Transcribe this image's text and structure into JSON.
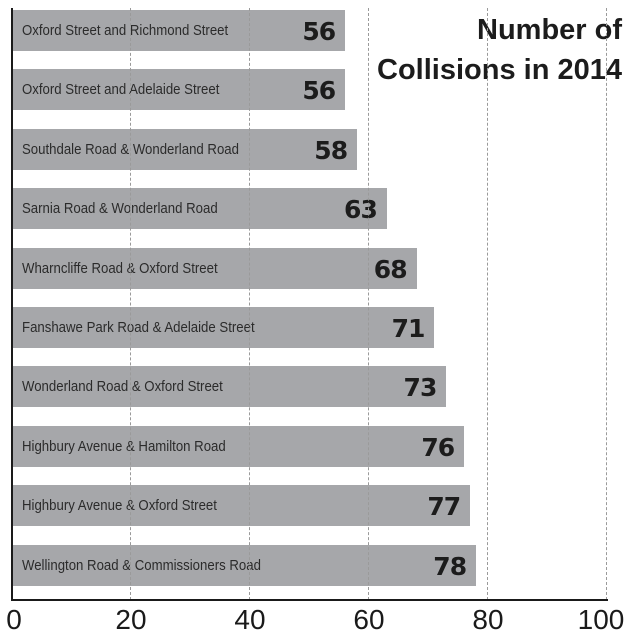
{
  "chart_data": {
    "type": "bar",
    "orientation": "horizontal",
    "title": "Number of Collisions in 2014",
    "xlabel": "",
    "ylabel": "",
    "xlim": [
      0,
      100
    ],
    "x_ticks": [
      "0",
      "20",
      "40",
      "60",
      "80",
      "100"
    ],
    "grid": "vertical dashed",
    "categories": [
      "Oxford Street and Richmond Street",
      "Oxford Street and Adelaide Street",
      "Southdale Road & Wonderland Road",
      "Sarnia Road & Wonderland Road",
      "Wharncliffe Road & Oxford Street",
      "Fanshawe Park Road & Adelaide Street",
      "Wonderland Road & Oxford Street",
      "Highbury Avenue & Hamilton Road",
      "Highbury Avenue & Oxford Street",
      "Wellington Road & Commissioners Road"
    ],
    "values": [
      56,
      56,
      58,
      63,
      68,
      71,
      73,
      76,
      77,
      78
    ],
    "bar_color": "#a6a7aa"
  },
  "title_lines": [
    "Number of",
    "Collisions in 2014"
  ]
}
